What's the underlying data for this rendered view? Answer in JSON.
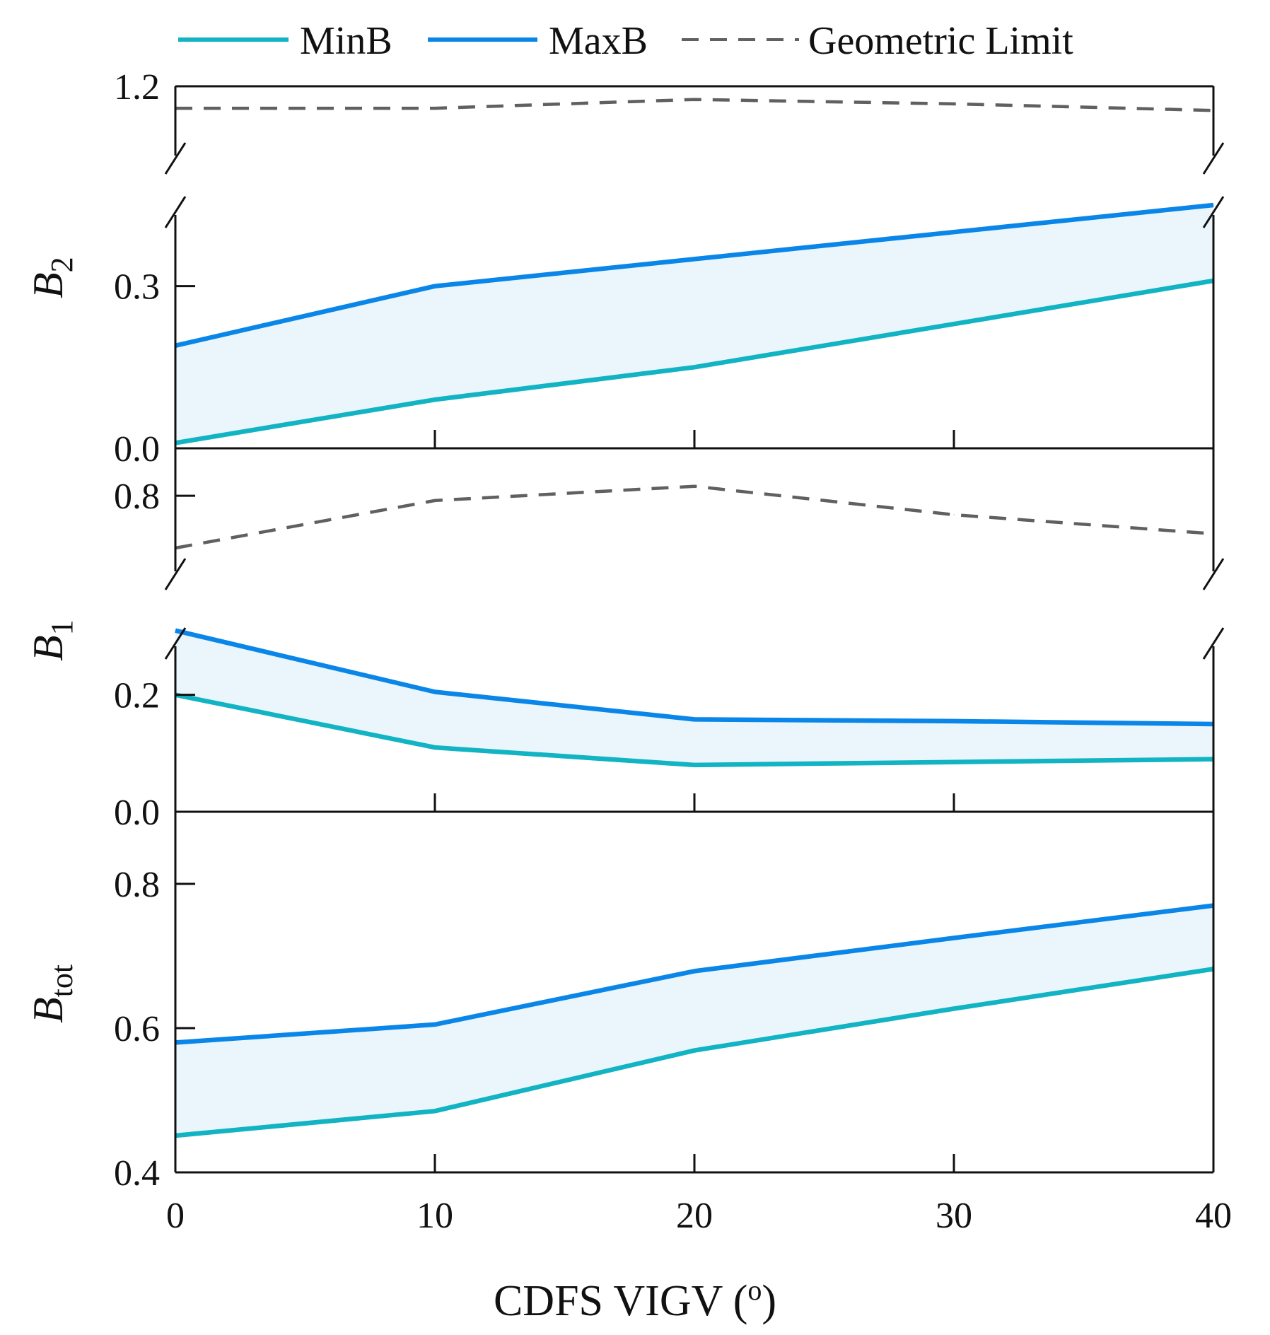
{
  "chart_data": {
    "type": "line",
    "x_label": "CDFS VIGV (",
    "x_unit": "o",
    "x_label_close": ")",
    "x_ticks": [
      "0",
      "10",
      "20",
      "30",
      "40"
    ],
    "x_values": [
      0,
      10,
      20,
      30,
      40
    ],
    "xlim": [
      0,
      40
    ],
    "colors": {
      "MinB": "#12b3c3",
      "MaxB": "#0a86e8",
      "Geometric Limit": "#606060",
      "band": "#eaf6fc",
      "axis": "#111111"
    },
    "legend": [
      {
        "name": "MinB",
        "style": "solid"
      },
      {
        "name": "MaxB",
        "style": "solid"
      },
      {
        "name": "Geometric Limit",
        "style": "dashed"
      }
    ],
    "panels": [
      {
        "id": "b2",
        "ylabel": "B",
        "ylabel_sub": "2",
        "broken_axis": true,
        "upper_ticks": [
          "1.2"
        ],
        "upper_tick_values": [
          1.2
        ],
        "upper_range": [
          1.02,
          1.2
        ],
        "lower_ticks": [
          "0.0",
          "0.3"
        ],
        "lower_tick_values": [
          0.0,
          0.3
        ],
        "lower_range": [
          0.0,
          0.45
        ],
        "series": [
          {
            "name": "MinB",
            "values": [
              0.01,
              0.09,
              0.15,
              0.23,
              0.31
            ]
          },
          {
            "name": "MaxB",
            "values": [
              0.19,
              0.3,
              0.35,
              0.4,
              0.45
            ]
          },
          {
            "name": "Geometric Limit",
            "values": [
              1.15,
              1.15,
              1.17,
              1.16,
              1.145
            ]
          }
        ]
      },
      {
        "id": "b1",
        "ylabel": "B",
        "ylabel_sub": "1",
        "broken_axis": true,
        "upper_ticks": [
          "0.8"
        ],
        "upper_tick_values": [
          0.8
        ],
        "upper_range": [
          0.62,
          0.9
        ],
        "lower_ticks": [
          "0.0",
          "0.2"
        ],
        "lower_tick_values": [
          0.0,
          0.2
        ],
        "lower_range": [
          0.0,
          0.3
        ],
        "series": [
          {
            "name": "MinB",
            "values": [
              0.2,
              0.11,
              0.08,
              0.085,
              0.09
            ]
          },
          {
            "name": "MaxB",
            "values": [
              0.31,
              0.205,
              0.158,
              0.155,
              0.15
            ]
          },
          {
            "name": "Geometric Limit",
            "values": [
              0.69,
              0.79,
              0.82,
              0.76,
              0.72
            ]
          }
        ]
      },
      {
        "id": "btot",
        "ylabel": "B",
        "ylabel_sub": "tot",
        "broken_axis": false,
        "ticks": [
          "0.4",
          "0.6",
          "0.8"
        ],
        "tick_values": [
          0.4,
          0.6,
          0.8
        ],
        "range": [
          0.4,
          0.9
        ],
        "series": [
          {
            "name": "MinB",
            "values": [
              0.451,
              0.485,
              0.569,
              0.627,
              0.682
            ]
          },
          {
            "name": "MaxB",
            "values": [
              0.58,
              0.605,
              0.679,
              0.725,
              0.77
            ]
          }
        ]
      }
    ]
  }
}
